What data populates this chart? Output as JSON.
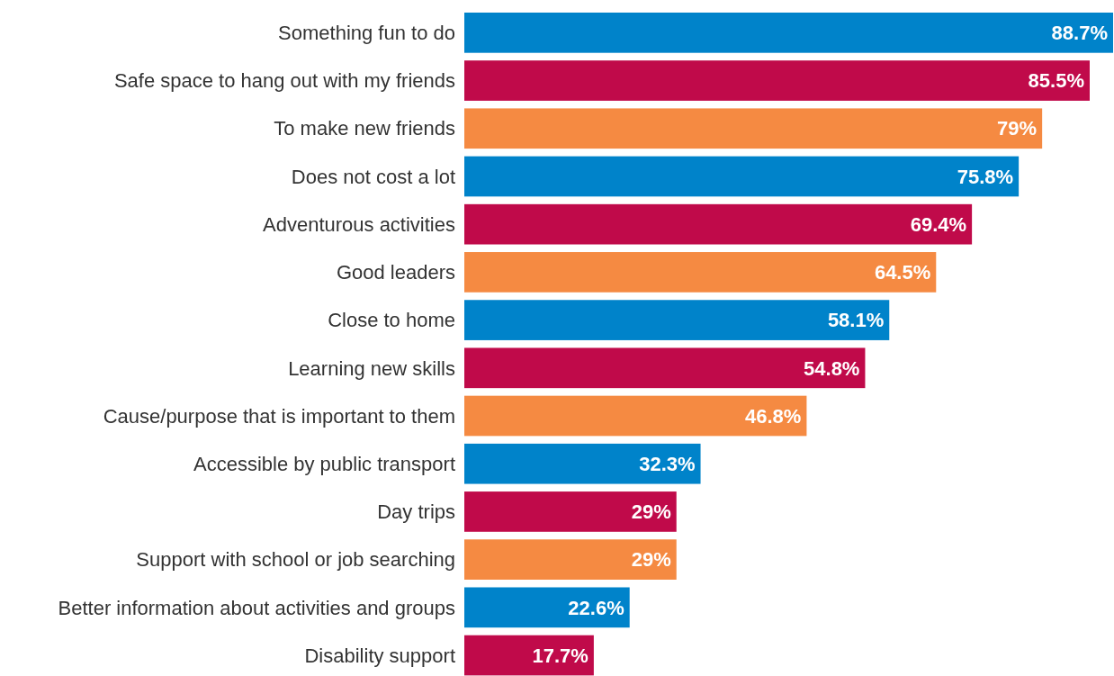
{
  "chart_data": {
    "type": "bar",
    "orientation": "horizontal",
    "categories": [
      "Something fun to do",
      "Safe space to hang out with my friends",
      "To make new friends",
      "Does not cost a lot",
      "Adventurous activities",
      "Good leaders",
      "Close to home",
      "Learning new skills",
      "Cause/purpose that is important to them",
      "Accessible by public transport",
      "Day trips",
      "Support with school or job searching",
      "Better information about activities and groups",
      "Disability support"
    ],
    "values": [
      88.7,
      85.5,
      79,
      75.8,
      69.4,
      64.5,
      58.1,
      54.8,
      46.8,
      32.3,
      29,
      29,
      22.6,
      17.7
    ],
    "value_labels": [
      "88.7%",
      "85.5%",
      "79%",
      "75.8%",
      "69.4%",
      "64.5%",
      "58.1%",
      "54.8%",
      "46.8%",
      "32.3%",
      "29%",
      "29%",
      "22.6%",
      "17.7%"
    ],
    "colors": [
      "#0083ca",
      "#c00a4a",
      "#f58a42",
      "#0083ca",
      "#c00a4a",
      "#f58a42",
      "#0083ca",
      "#c00a4a",
      "#f58a42",
      "#0083ca",
      "#c00a4a",
      "#f58a42",
      "#0083ca",
      "#c00a4a"
    ]
  }
}
